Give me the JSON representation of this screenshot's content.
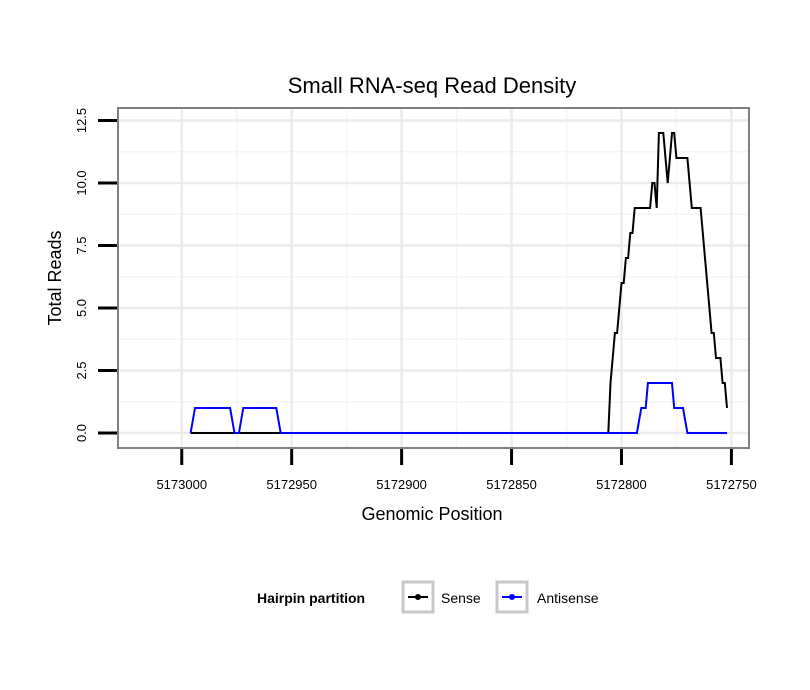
{
  "chart_data": {
    "type": "line",
    "title": "Small RNA-seq Read Density",
    "xlabel": "Genomic Position",
    "ylabel": "Total Reads",
    "xlim": [
      5173029,
      5172742
    ],
    "x_reversed": true,
    "ylim": [
      -0.6,
      13.0
    ],
    "xticks": [
      5173000,
      5172950,
      5172900,
      5172850,
      5172800,
      5172750
    ],
    "xtick_labels": [
      "5173000",
      "5172950",
      "5172900",
      "5172850",
      "5172800",
      "5172750"
    ],
    "yticks": [
      0.0,
      2.5,
      5.0,
      7.5,
      10.0,
      12.5
    ],
    "ytick_labels": [
      "0.0",
      "2.5",
      "5.0",
      "7.5",
      "10.0",
      "12.5"
    ],
    "grid": true,
    "legend": {
      "title": "Hairpin partition",
      "position": "bottom",
      "entries": [
        "Sense",
        "Antisense"
      ]
    },
    "series": [
      {
        "name": "Sense",
        "color": "#000000",
        "points": [
          [
            5172996,
            0
          ],
          [
            5172806,
            0
          ],
          [
            5172805,
            2
          ],
          [
            5172804,
            3
          ],
          [
            5172803,
            4
          ],
          [
            5172802,
            4
          ],
          [
            5172801,
            5
          ],
          [
            5172800,
            6
          ],
          [
            5172799,
            6
          ],
          [
            5172798,
            7
          ],
          [
            5172797,
            7
          ],
          [
            5172796,
            8
          ],
          [
            5172795,
            8
          ],
          [
            5172794,
            9
          ],
          [
            5172787,
            9
          ],
          [
            5172786,
            10
          ],
          [
            5172785,
            10
          ],
          [
            5172784,
            9
          ],
          [
            5172783,
            12
          ],
          [
            5172781,
            12
          ],
          [
            5172780,
            11
          ],
          [
            5172779,
            10
          ],
          [
            5172778,
            11
          ],
          [
            5172777,
            12
          ],
          [
            5172776,
            12
          ],
          [
            5172775,
            11
          ],
          [
            5172770,
            11
          ],
          [
            5172769,
            10
          ],
          [
            5172768,
            9
          ],
          [
            5172764,
            9
          ],
          [
            5172763,
            8
          ],
          [
            5172762,
            7
          ],
          [
            5172761,
            6
          ],
          [
            5172760,
            5
          ],
          [
            5172759,
            4
          ],
          [
            5172758,
            4
          ],
          [
            5172757,
            3
          ],
          [
            5172755,
            3
          ],
          [
            5172754,
            2
          ],
          [
            5172753,
            2
          ],
          [
            5172752,
            1
          ]
        ]
      },
      {
        "name": "Antisense",
        "color": "#0000ff",
        "points": [
          [
            5172996,
            0
          ],
          [
            5172994,
            1
          ],
          [
            5172978,
            1
          ],
          [
            5172976,
            0
          ],
          [
            5172974,
            0
          ],
          [
            5172972,
            1
          ],
          [
            5172957,
            1
          ],
          [
            5172955,
            0
          ],
          [
            5172793,
            0
          ],
          [
            5172791,
            1
          ],
          [
            5172789,
            1
          ],
          [
            5172788,
            2
          ],
          [
            5172777,
            2
          ],
          [
            5172776,
            1
          ],
          [
            5172772,
            1
          ],
          [
            5172770,
            0
          ],
          [
            5172752,
            0
          ]
        ]
      }
    ]
  }
}
